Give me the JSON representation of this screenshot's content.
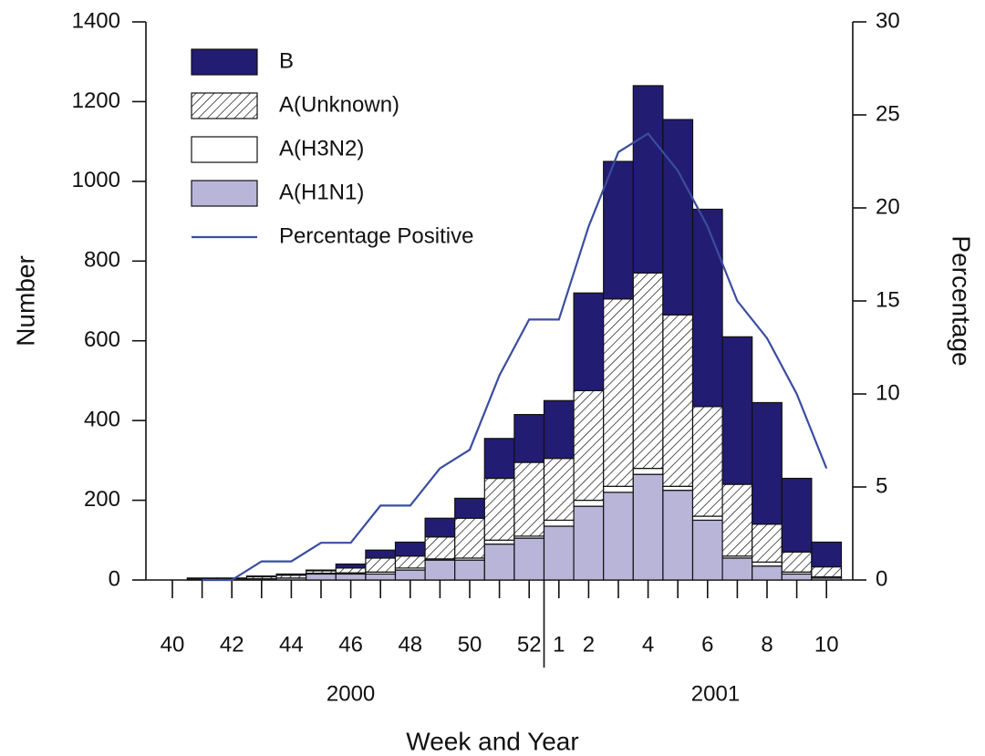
{
  "chart_data": {
    "type": "bar",
    "stacked": true,
    "x_label": "Week and Year",
    "y_label": "Number",
    "y2_label": "Percentage",
    "categories": [
      "40",
      null,
      "42",
      null,
      "44",
      null,
      "46",
      null,
      "48",
      null,
      "50",
      null,
      "52",
      "1",
      "2",
      null,
      "4",
      null,
      "6",
      null,
      "8",
      null,
      "10"
    ],
    "x_groups": [
      {
        "label": "2000",
        "count": 13
      },
      {
        "label": "2001",
        "count": 10
      }
    ],
    "ylim": [
      0,
      1400
    ],
    "yticks": [
      0,
      200,
      400,
      600,
      800,
      1000,
      1200,
      1400
    ],
    "y2lim": [
      0,
      30
    ],
    "y2ticks": [
      0,
      5,
      10,
      15,
      20,
      25,
      30
    ],
    "legend": "upper left",
    "series": [
      {
        "name": "A(H1N1)",
        "color": "#b9b5d9",
        "values": [
          0,
          0,
          0,
          3,
          5,
          15,
          15,
          15,
          25,
          50,
          50,
          90,
          105,
          135,
          185,
          220,
          265,
          225,
          150,
          55,
          35,
          15,
          5
        ]
      },
      {
        "name": "A(H3N2)",
        "color": "#ffffff",
        "values": [
          0,
          0,
          0,
          0,
          0,
          2,
          3,
          5,
          5,
          3,
          5,
          10,
          5,
          15,
          15,
          15,
          15,
          10,
          10,
          5,
          10,
          5,
          3
        ]
      },
      {
        "name": "A(Unknown)",
        "color": "#ffffff",
        "pattern": "hatch",
        "values": [
          0,
          2,
          3,
          5,
          7,
          6,
          12,
          35,
          30,
          55,
          100,
          155,
          185,
          155,
          275,
          470,
          490,
          430,
          275,
          180,
          95,
          50,
          25
        ]
      },
      {
        "name": "B",
        "color": "#221c72",
        "values": [
          0,
          3,
          2,
          2,
          3,
          2,
          10,
          20,
          35,
          47,
          50,
          100,
          120,
          145,
          245,
          345,
          470,
          490,
          495,
          370,
          305,
          185,
          62
        ]
      },
      {
        "name": "Percentage Positive",
        "type": "line",
        "axis": "y2",
        "color": "#3b4d9e",
        "values": [
          null,
          0,
          0,
          1,
          1,
          2,
          2,
          4,
          4,
          6,
          7,
          11,
          14,
          14,
          19,
          23,
          24,
          22,
          19,
          15,
          13,
          10,
          6
        ]
      }
    ]
  }
}
